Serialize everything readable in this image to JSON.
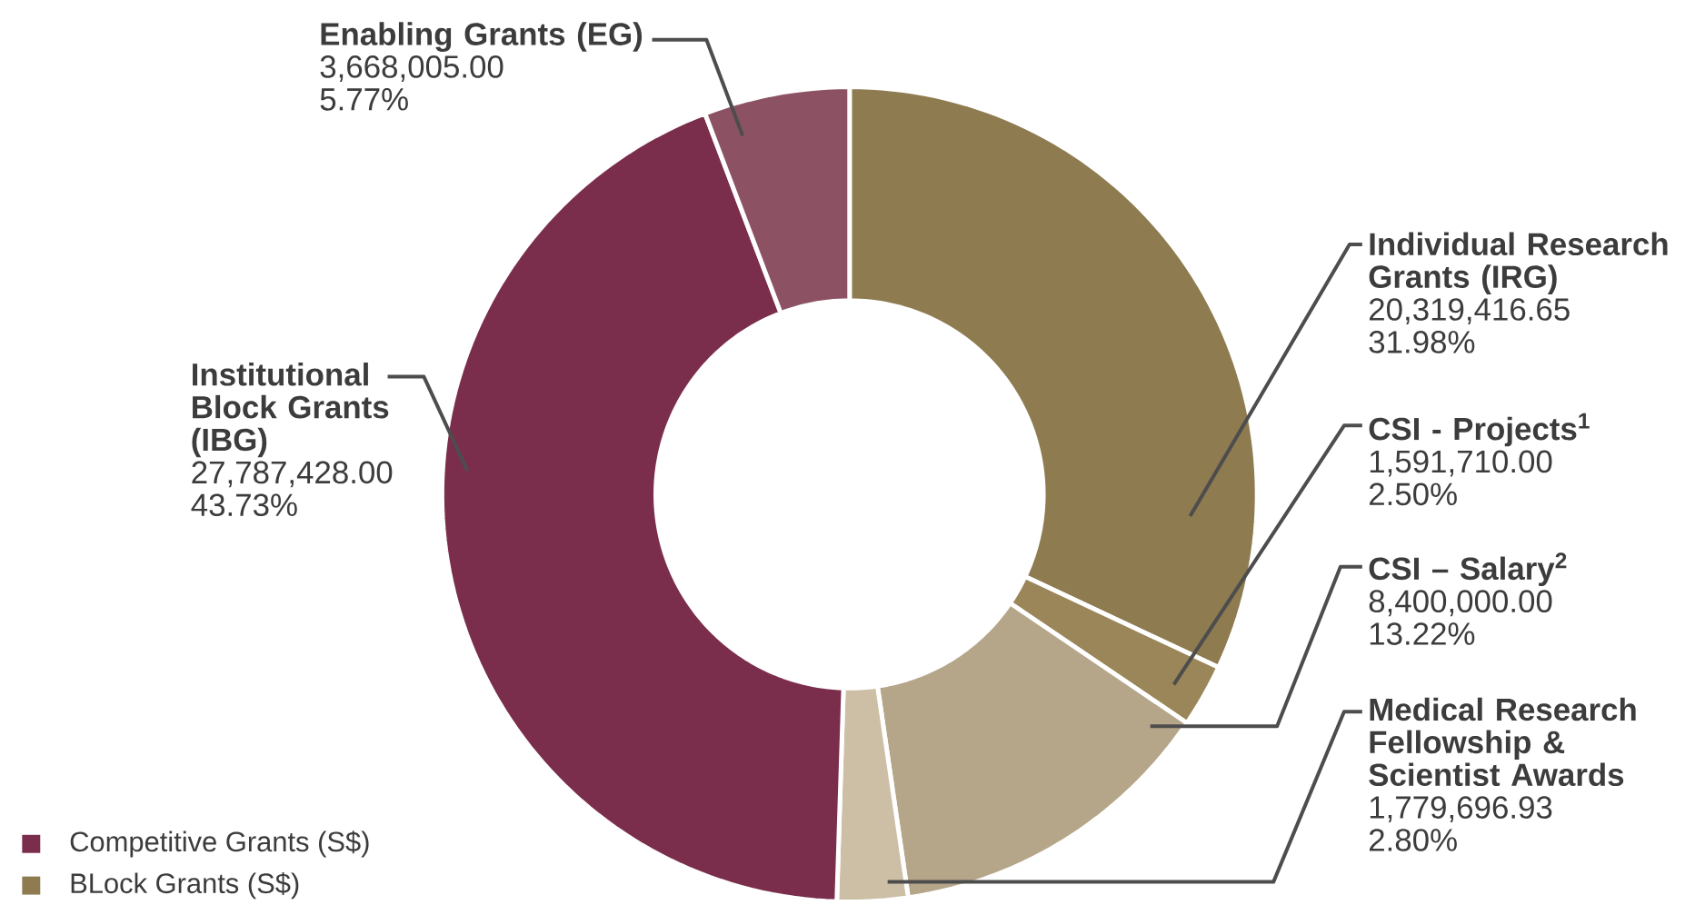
{
  "chart_data": {
    "type": "donut",
    "categories": [
      "Individual Research Grants (IRG)",
      "CSI - Projects$^{1}$",
      "CSI – Salary$^{2}$",
      "Medical Research Fellowship & Scientist Awards",
      "Institutional Block Grants (IBG)",
      "Enabling Grants (EG)"
    ],
    "values": [
      20319416.65,
      1591710.0,
      8400000.0,
      1779696.93,
      27787428.0,
      3668005.0
    ],
    "colors": [
      "#8e7b50",
      "#9a8658",
      "#b5a68a",
      "#cdbfa6",
      "#7a2e4c",
      "#8c5264"
    ],
    "value_labels": [
      "20,319,416.65",
      "1,591,710.00",
      "8,400,000.00",
      "1,779,696.93",
      "27,787,428.00",
      "3,668,005.00"
    ],
    "annotations": [
      "31.98%",
      "2.50%",
      "13.22%",
      "2.80%",
      "43.73%",
      "5.77%",
      "Competitive Grants (S$)",
      "BLock Grants (S$)"
    ]
  }
}
